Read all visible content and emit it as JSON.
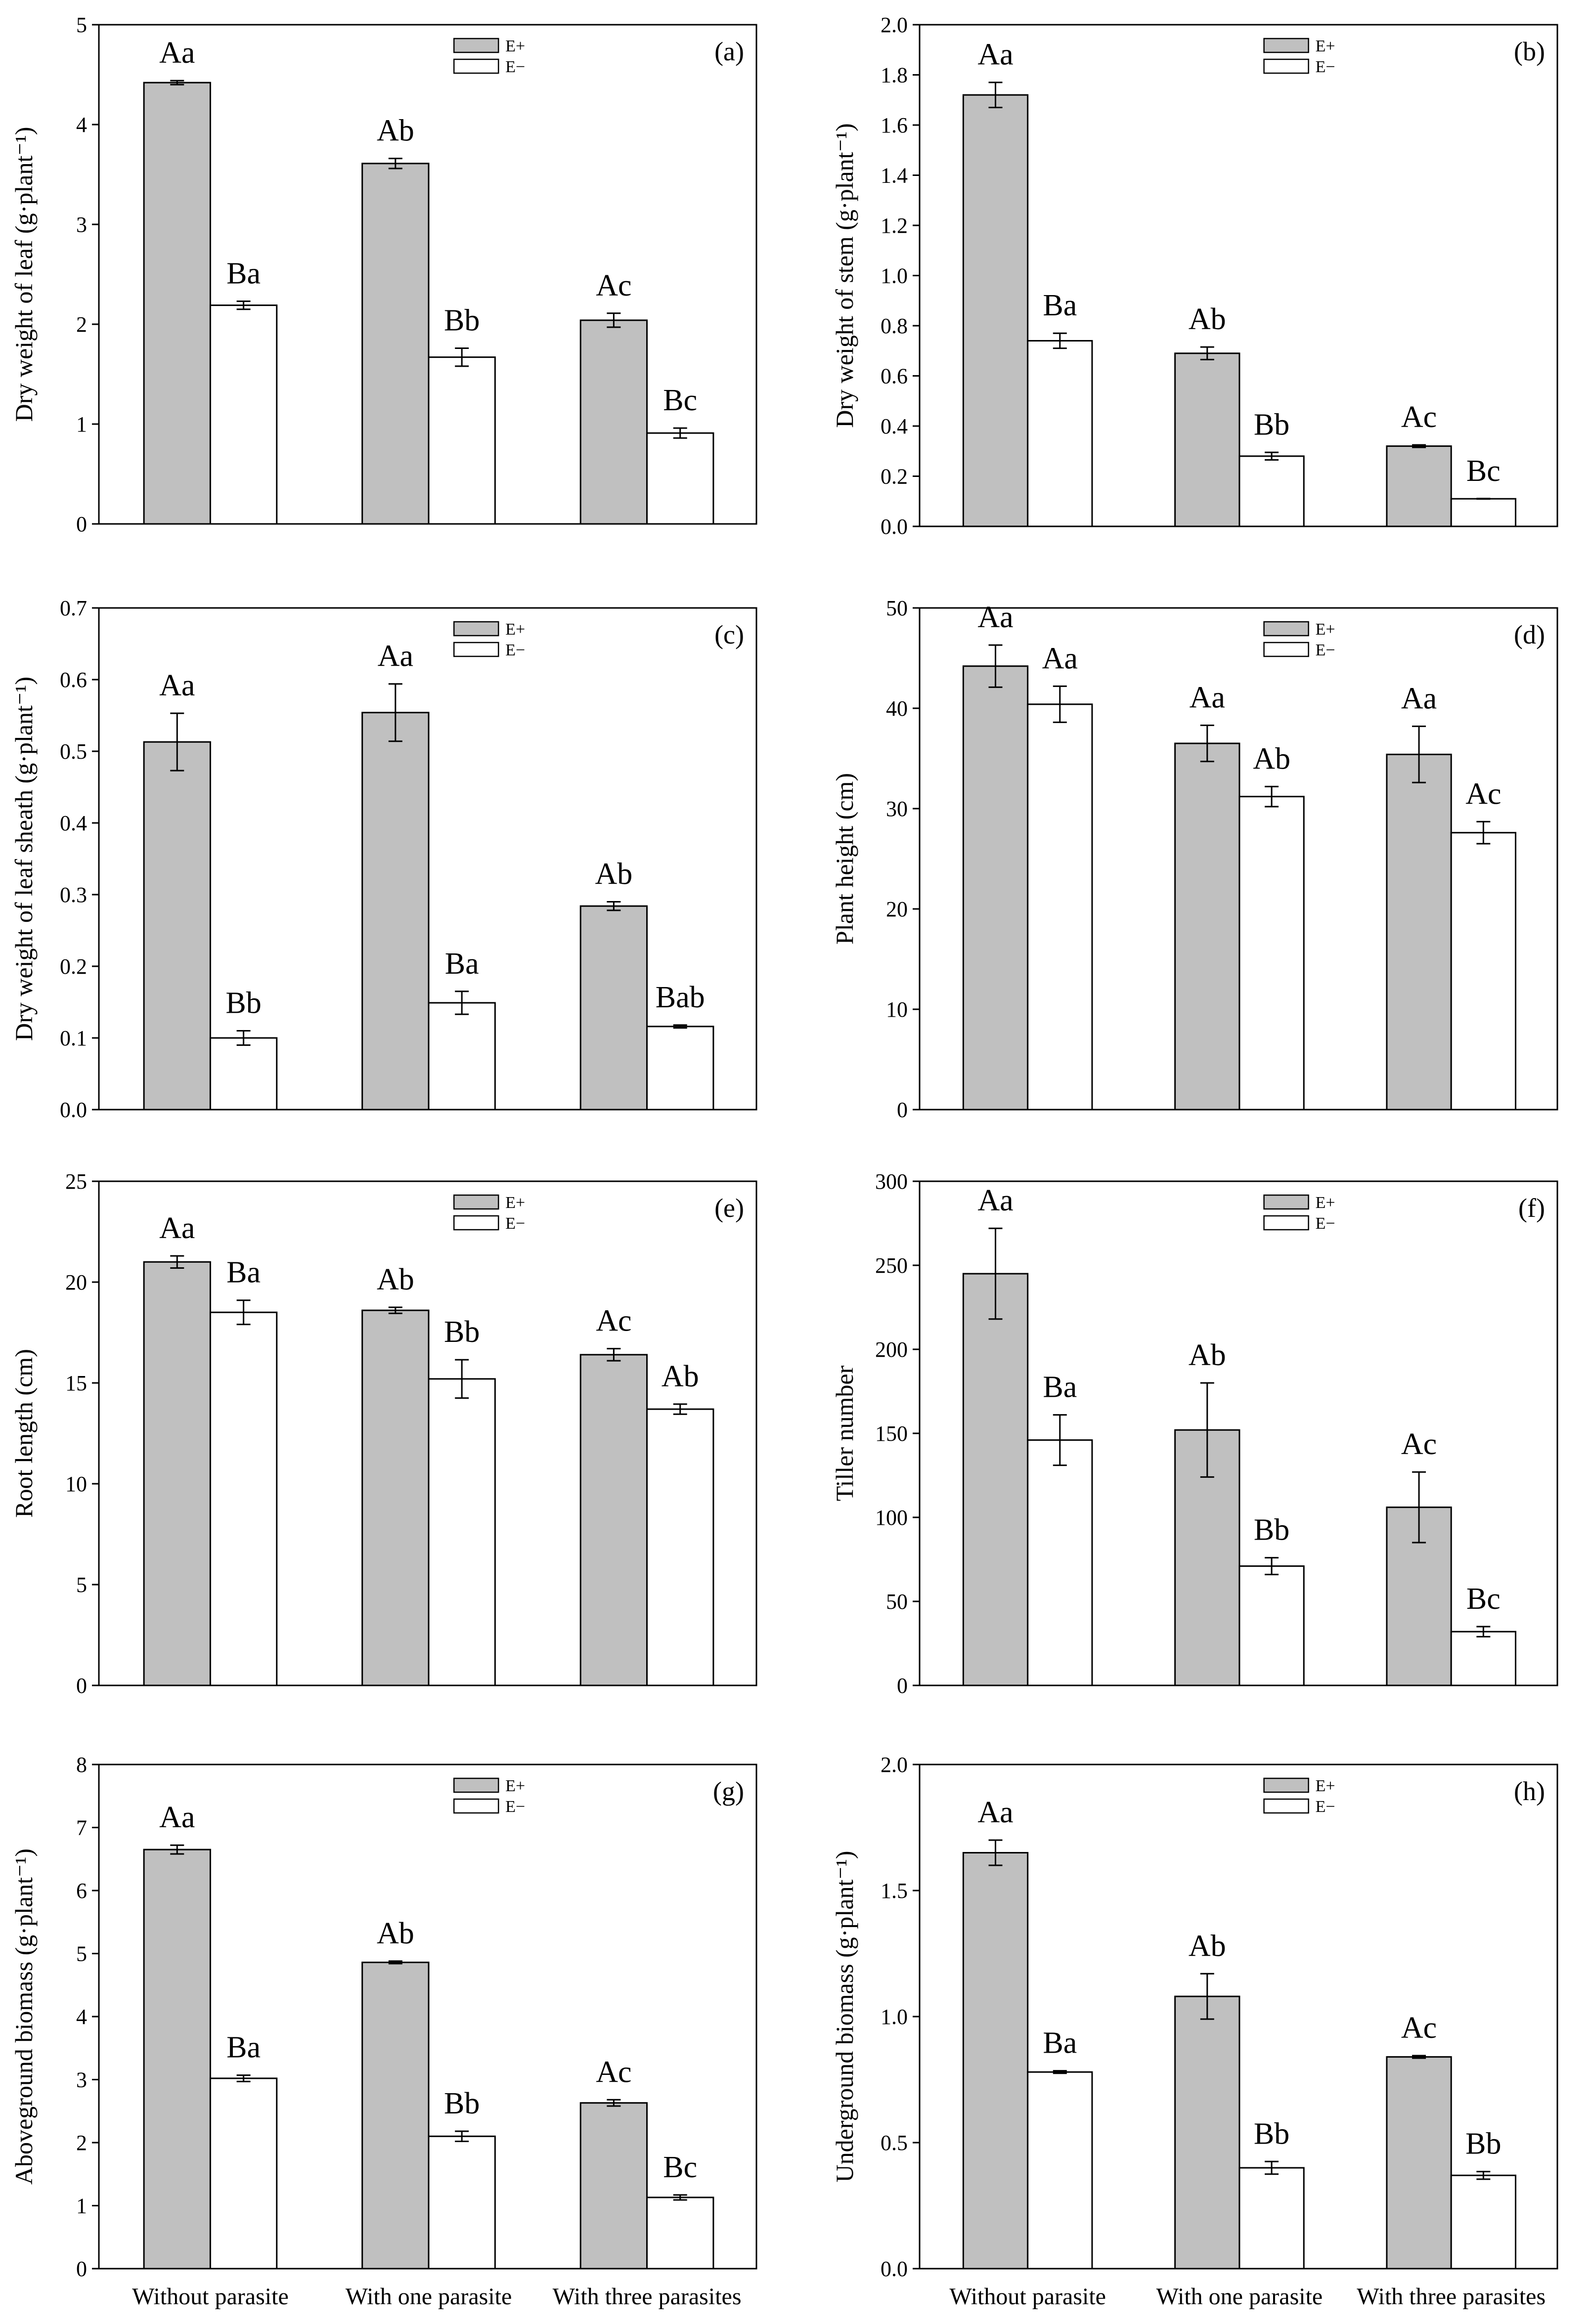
{
  "legend": {
    "eplus": "E+",
    "eminus": "E−"
  },
  "colors": {
    "eplus_fill": "#c0c0c0",
    "eminus_fill": "#ffffff",
    "stroke": "#000000"
  },
  "categories": [
    "Without parasite",
    "With one parasite",
    "With three parasites"
  ],
  "chart_data": [
    {
      "type": "bar",
      "panel": "(a)",
      "ylabel": "Dry weight of leaf (g·plant⁻¹)",
      "ylim": [
        0,
        5
      ],
      "yticks": [
        0,
        1,
        2,
        3,
        4,
        5
      ],
      "ytick_labels": [
        "0",
        "1",
        "2",
        "3",
        "4",
        "5"
      ],
      "categories": [
        "Without parasite",
        "With one parasite",
        "With three parasites"
      ],
      "series": [
        {
          "name": "E+",
          "values": [
            4.42,
            3.61,
            2.04
          ],
          "errors": [
            0.02,
            0.05,
            0.07
          ],
          "labels": [
            "Aa",
            "Ab",
            "Ac"
          ]
        },
        {
          "name": "E−",
          "values": [
            2.19,
            1.67,
            0.91
          ],
          "errors": [
            0.04,
            0.09,
            0.05
          ],
          "labels": [
            "Ba",
            "Bb",
            "Bc"
          ]
        }
      ]
    },
    {
      "type": "bar",
      "panel": "(b)",
      "ylabel": "Dry weight of stem (g·plant⁻¹)",
      "ylim": [
        0,
        2.0
      ],
      "yticks": [
        0,
        0.2,
        0.4,
        0.6,
        0.8,
        1.0,
        1.2,
        1.4,
        1.6,
        1.8,
        2.0
      ],
      "ytick_labels": [
        "0.0",
        "0.2",
        "0.4",
        "0.6",
        "0.8",
        "1.0",
        "1.2",
        "1.4",
        "1.6",
        "1.8",
        "2.0"
      ],
      "categories": [
        "Without parasite",
        "With one parasite",
        "With three parasites"
      ],
      "series": [
        {
          "name": "E+",
          "values": [
            1.72,
            0.69,
            0.32
          ],
          "errors": [
            0.05,
            0.025,
            0.005
          ],
          "labels": [
            "Aa",
            "Ab",
            "Ac"
          ]
        },
        {
          "name": "E−",
          "values": [
            0.74,
            0.28,
            0.11
          ],
          "errors": [
            0.03,
            0.015,
            0.0
          ],
          "labels": [
            "Ba",
            "Bb",
            "Bc"
          ]
        }
      ]
    },
    {
      "type": "bar",
      "panel": "(c)",
      "ylabel": "Dry weight of leaf sheath (g·plant⁻¹)",
      "ylim": [
        0,
        0.7
      ],
      "yticks": [
        0,
        0.1,
        0.2,
        0.3,
        0.4,
        0.5,
        0.6,
        0.7
      ],
      "ytick_labels": [
        "0.0",
        "0.1",
        "0.2",
        "0.3",
        "0.4",
        "0.5",
        "0.6",
        "0.7"
      ],
      "categories": [
        "Without parasite",
        "With one parasite",
        "With three parasites"
      ],
      "series": [
        {
          "name": "E+",
          "values": [
            0.513,
            0.554,
            0.284
          ],
          "errors": [
            0.04,
            0.04,
            0.006
          ],
          "labels": [
            "Aa",
            "Aa",
            "Ab"
          ]
        },
        {
          "name": "E−",
          "values": [
            0.1,
            0.149,
            0.116
          ],
          "errors": [
            0.01,
            0.016,
            0.002
          ],
          "labels": [
            "Bb",
            "Ba",
            "Bab"
          ]
        }
      ]
    },
    {
      "type": "bar",
      "panel": "(d)",
      "ylabel": "Plant height (cm)",
      "ylim": [
        0,
        50
      ],
      "yticks": [
        0,
        10,
        20,
        30,
        40,
        50
      ],
      "ytick_labels": [
        "0",
        "10",
        "20",
        "30",
        "40",
        "50"
      ],
      "categories": [
        "Without parasite",
        "With one parasite",
        "With three parasites"
      ],
      "series": [
        {
          "name": "E+",
          "values": [
            44.2,
            36.5,
            35.4
          ],
          "errors": [
            2.1,
            1.8,
            2.8
          ],
          "labels": [
            "Aa",
            "Aa",
            "Aa"
          ]
        },
        {
          "name": "E−",
          "values": [
            40.4,
            31.2,
            27.6
          ],
          "errors": [
            1.8,
            1.0,
            1.1
          ],
          "labels": [
            "Aa",
            "Ab",
            "Ac"
          ]
        }
      ]
    },
    {
      "type": "bar",
      "panel": "(e)",
      "ylabel": "Root length (cm)",
      "ylim": [
        0,
        25
      ],
      "yticks": [
        0,
        5,
        10,
        15,
        20,
        25
      ],
      "ytick_labels": [
        "0",
        "5",
        "10",
        "15",
        "20",
        "25"
      ],
      "categories": [
        "Without parasite",
        "With one parasite",
        "With three parasites"
      ],
      "series": [
        {
          "name": "E+",
          "values": [
            21.0,
            18.6,
            16.4
          ],
          "errors": [
            0.3,
            0.15,
            0.3
          ],
          "labels": [
            "Aa",
            "Ab",
            "Ac"
          ]
        },
        {
          "name": "E−",
          "values": [
            18.5,
            15.2,
            13.7
          ],
          "errors": [
            0.6,
            0.95,
            0.25
          ],
          "labels": [
            "Ba",
            "Bb",
            "Ab"
          ]
        }
      ]
    },
    {
      "type": "bar",
      "panel": "(f)",
      "ylabel": "Tiller number",
      "ylim": [
        0,
        300
      ],
      "yticks": [
        0,
        50,
        100,
        150,
        200,
        250,
        300
      ],
      "ytick_labels": [
        "0",
        "50",
        "100",
        "150",
        "200",
        "250",
        "300"
      ],
      "categories": [
        "Without parasite",
        "With one parasite",
        "With three parasites"
      ],
      "series": [
        {
          "name": "E+",
          "values": [
            245,
            152,
            106
          ],
          "errors": [
            27,
            28,
            21
          ],
          "labels": [
            "Aa",
            "Ab",
            "Ac"
          ]
        },
        {
          "name": "E−",
          "values": [
            146,
            71,
            32
          ],
          "errors": [
            15,
            5,
            3
          ],
          "labels": [
            "Ba",
            "Bb",
            "Bc"
          ]
        }
      ]
    },
    {
      "type": "bar",
      "panel": "(g)",
      "ylabel": "Aboveground biomass (g·plant⁻¹)",
      "ylim": [
        0,
        8
      ],
      "yticks": [
        0,
        1,
        2,
        3,
        4,
        5,
        6,
        7,
        8
      ],
      "ytick_labels": [
        "0",
        "1",
        "2",
        "3",
        "4",
        "5",
        "6",
        "7",
        "8"
      ],
      "categories": [
        "Without parasite",
        "With one parasite",
        "With three parasites"
      ],
      "series": [
        {
          "name": "E+",
          "values": [
            6.65,
            4.86,
            2.63
          ],
          "errors": [
            0.07,
            0.02,
            0.05
          ],
          "labels": [
            "Aa",
            "Ab",
            "Ac"
          ]
        },
        {
          "name": "E−",
          "values": [
            3.02,
            2.1,
            1.13
          ],
          "errors": [
            0.05,
            0.08,
            0.04
          ],
          "labels": [
            "Ba",
            "Bb",
            "Bc"
          ]
        }
      ]
    },
    {
      "type": "bar",
      "panel": "(h)",
      "ylabel": "Underground biomass (g·plant⁻¹)",
      "ylim": [
        0,
        2.0
      ],
      "yticks": [
        0,
        0.5,
        1.0,
        1.5,
        2.0
      ],
      "ytick_labels": [
        "0.0",
        "0.5",
        "1.0",
        "1.5",
        "2.0"
      ],
      "categories": [
        "Without parasite",
        "With one parasite",
        "With three parasites"
      ],
      "series": [
        {
          "name": "E+",
          "values": [
            1.65,
            1.08,
            0.84
          ],
          "errors": [
            0.05,
            0.09,
            0.005
          ],
          "labels": [
            "Aa",
            "Ab",
            "Ac"
          ]
        },
        {
          "name": "E−",
          "values": [
            0.78,
            0.4,
            0.37
          ],
          "errors": [
            0.005,
            0.025,
            0.015
          ],
          "labels": [
            "Ba",
            "Bb",
            "Bb"
          ]
        }
      ]
    }
  ]
}
